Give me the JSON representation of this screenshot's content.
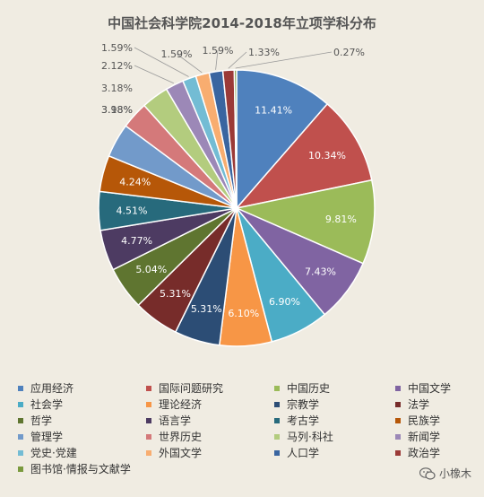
{
  "chart_data": {
    "type": "pie",
    "title": "中国社会科学院2014-2018年立项学科分布",
    "categories": [
      "应用经济",
      "国际问题研究",
      "中国历史",
      "中国文学",
      "社会学",
      "理论经济",
      "宗教学",
      "法学",
      "哲学",
      "语言学",
      "考古学",
      "民族学",
      "管理学",
      "世界历史",
      "马列·科社",
      "新闻学",
      "党史·党建",
      "外国文学",
      "人口学",
      "政治学",
      "图书馆·情报与文献学"
    ],
    "values": [
      11.41,
      10.34,
      9.81,
      7.43,
      6.9,
      6.1,
      5.31,
      5.31,
      5.04,
      4.77,
      4.51,
      4.24,
      3.98,
      3.18,
      3.18,
      2.12,
      1.59,
      1.59,
      1.59,
      1.33,
      0.27
    ],
    "labels": [
      "11.41%",
      "10.34%",
      "9.81%",
      "7.43%",
      "6.90%",
      "6.10%",
      "5.31%",
      "5.31%",
      "5.04%",
      "4.77%",
      "4.51%",
      "4.24%",
      "3.98%",
      "3.18%",
      "3.18%",
      "2.12%",
      "1.59%",
      "1.59%",
      "1.59%",
      "1.33%",
      "0.27%"
    ],
    "colors": [
      "#4f81bd",
      "#c0504d",
      "#9bbb59",
      "#8064a2",
      "#4bacc6",
      "#f79646",
      "#2c4d75",
      "#772c2a",
      "#5f7530",
      "#4d3b62",
      "#276a7c",
      "#b65708",
      "#729aca",
      "#d4797a",
      "#b3cc7e",
      "#9c88b7",
      "#73bcd4",
      "#f8ad70",
      "#3a65a0",
      "#9b3a37",
      "#7a9a3e"
    ],
    "legend_position": "bottom"
  },
  "watermark": {
    "text": "小橡木"
  }
}
